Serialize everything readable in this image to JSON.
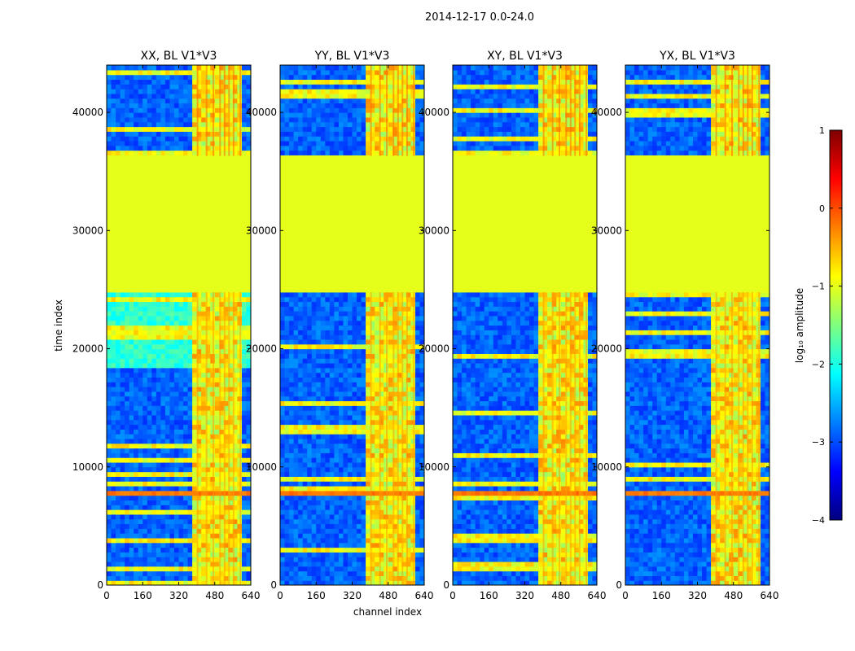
{
  "suptitle": "2014-12-17 0.0-24.0",
  "chart_data": {
    "type": "heatmap",
    "xlabel": "channel index",
    "ylabel": "time index",
    "xlim": [
      0,
      640
    ],
    "ylim": [
      0,
      44000
    ],
    "x_ticks": [
      0,
      160,
      320,
      480,
      640
    ],
    "y_ticks": [
      0,
      10000,
      20000,
      30000,
      40000
    ],
    "y_tick_labels": [
      "0",
      "10000",
      "20000",
      "30000",
      "40000"
    ],
    "panels": [
      {
        "title": "XX, BL V1*V3",
        "pol": "XX"
      },
      {
        "title": "YY, BL V1*V3",
        "pol": "YY"
      },
      {
        "title": "XY, BL V1*V3",
        "pol": "XY"
      },
      {
        "title": "YX, BL V1*V3",
        "pol": "YX"
      }
    ],
    "colorbar": {
      "label": "log₁₀ amplitude",
      "vmin": -4,
      "vmax": 1,
      "ticks": [
        -4,
        -3,
        -2,
        -1,
        0,
        1
      ],
      "tick_labels": [
        "−4",
        "−3",
        "−2",
        "−1",
        "0",
        "1"
      ],
      "colormap": "jet"
    },
    "features": {
      "flagged_time_range": [
        24800,
        36300
      ],
      "flagged_value": -1.0,
      "rfi_channel_range": [
        390,
        600
      ],
      "strong_rfi_time_band": [
        7400,
        7900
      ]
    }
  }
}
